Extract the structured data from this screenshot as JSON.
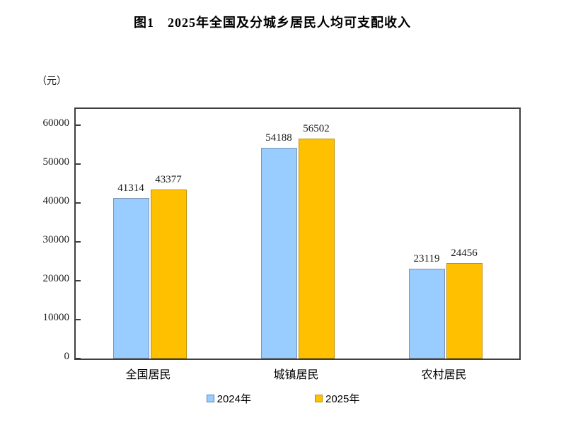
{
  "title": "图1　2025年全国及分城乡居民人均可支配收入",
  "y_axis_unit": "（元）",
  "chart_data": {
    "type": "bar",
    "title": "图1　2025年全国及分城乡居民人均可支配收入",
    "categories": [
      "全国居民",
      "城镇居民",
      "农村居民"
    ],
    "series": [
      {
        "name": "2024年",
        "values": [
          41314,
          54188,
          23119
        ],
        "color": "#99CCFF",
        "border_color": "#8093AE",
        "legend_border_color": "#4F81BD"
      },
      {
        "name": "2025年",
        "values": [
          43377,
          56502,
          24456
        ],
        "color": "#FFC000",
        "border_color": "#BF9000",
        "legend_border_color": "#BF9000"
      }
    ],
    "xlabel": "",
    "ylabel": "（元）",
    "ylim": [
      0,
      64200
    ],
    "y_ticks": [
      0,
      10000,
      20000,
      30000,
      40000,
      50000,
      60000
    ],
    "data_labels": true,
    "grid": false,
    "legend_position": "bottom"
  }
}
